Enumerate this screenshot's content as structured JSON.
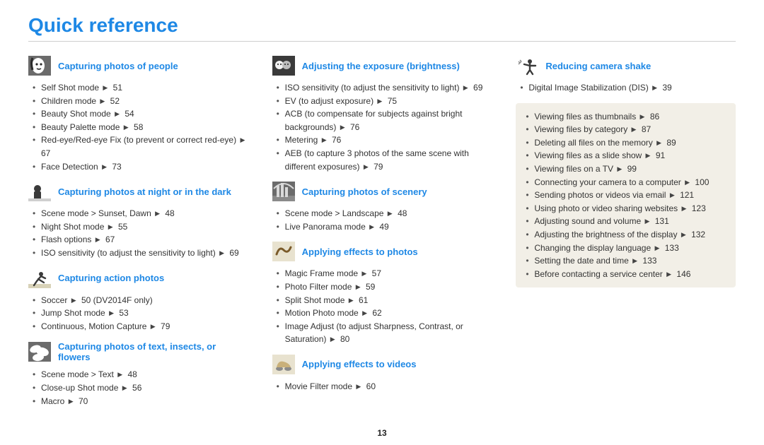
{
  "page": {
    "title": "Quick reference",
    "number": "13"
  },
  "colors": {
    "accent": "#1e88e5",
    "text": "#222222",
    "box_bg": "#f2efe7",
    "rule": "#cfcfcf"
  },
  "typography": {
    "title_pt": 28,
    "title_weight": 700,
    "section_pt": 13,
    "section_weight": 600,
    "body_pt": 12
  },
  "columns": [
    {
      "sections": [
        {
          "icon": "face",
          "title": "Capturing photos of people",
          "items": [
            {
              "label": "Self Shot mode",
              "page": "51"
            },
            {
              "label": "Children mode",
              "page": "52"
            },
            {
              "label": "Beauty Shot mode",
              "page": "54"
            },
            {
              "label": "Beauty Palette mode",
              "page": "58"
            },
            {
              "label": "Red-eye/Red-eye Fix (to prevent or correct red-eye)",
              "page": "67"
            },
            {
              "label": "Face Detection",
              "page": "73"
            }
          ]
        },
        {
          "icon": "night",
          "title": "Capturing photos at night or in the dark",
          "items": [
            {
              "label": "Scene mode > Sunset, Dawn",
              "page": "48"
            },
            {
              "label": "Night Shot mode",
              "page": "55"
            },
            {
              "label": "Flash options",
              "page": "67"
            },
            {
              "label": "ISO sensitivity (to adjust the sensitivity to light)",
              "page": "69"
            }
          ]
        },
        {
          "icon": "action",
          "title": "Capturing action photos",
          "items": [
            {
              "label": "Soccer",
              "page": "50 (DV2014F only)"
            },
            {
              "label": "Jump Shot mode",
              "page": "53"
            },
            {
              "label": "Continuous, Motion Capture",
              "page": "79"
            }
          ]
        },
        {
          "icon": "flower",
          "title": "Capturing photos of text, insects, or flowers",
          "items": [
            {
              "label": "Scene mode > Text",
              "page": "48"
            },
            {
              "label": "Close-up Shot mode",
              "page": "56"
            },
            {
              "label": "Macro",
              "page": "70"
            }
          ]
        }
      ]
    },
    {
      "sections": [
        {
          "icon": "exposure",
          "title": "Adjusting the exposure (brightness)",
          "items": [
            {
              "label": "ISO sensitivity (to adjust the sensitivity to light)",
              "page": "69"
            },
            {
              "label": "EV (to adjust exposure)",
              "page": "75"
            },
            {
              "label": "ACB (to compensate for subjects against bright backgrounds)",
              "page": "76"
            },
            {
              "label": "Metering",
              "page": "76"
            },
            {
              "label": "AEB (to capture 3 photos of the same scene with different exposures)",
              "page": "79"
            }
          ]
        },
        {
          "icon": "scenery",
          "title": "Capturing photos of scenery",
          "items": [
            {
              "label": "Scene mode > Landscape",
              "page": "48"
            },
            {
              "label": "Live Panorama mode",
              "page": "49"
            }
          ]
        },
        {
          "icon": "fx-photo",
          "title": "Applying effects to photos",
          "items": [
            {
              "label": "Magic Frame mode",
              "page": "57"
            },
            {
              "label": "Photo Filter mode",
              "page": "59"
            },
            {
              "label": "Split Shot mode",
              "page": "61"
            },
            {
              "label": "Motion Photo mode",
              "page": "62"
            },
            {
              "label": "Image Adjust (to adjust Sharpness, Contrast, or Saturation)",
              "page": "80"
            }
          ]
        },
        {
          "icon": "fx-video",
          "title": "Applying effects to videos",
          "items": [
            {
              "label": "Movie Filter mode",
              "page": "60"
            }
          ]
        }
      ]
    },
    {
      "sections": [
        {
          "icon": "shake",
          "title": "Reducing camera shake",
          "items": [
            {
              "label": "Digital Image Stabilization (DIS)",
              "page": "39"
            }
          ]
        }
      ],
      "boxed": [
        {
          "label": "Viewing files as thumbnails",
          "page": "86"
        },
        {
          "label": "Viewing files by category",
          "page": "87"
        },
        {
          "label": "Deleting all files on the memory",
          "page": "89"
        },
        {
          "label": "Viewing files as a slide show",
          "page": "91"
        },
        {
          "label": "Viewing files on a TV",
          "page": "99"
        },
        {
          "label": "Connecting your camera to a computer",
          "page": "100"
        },
        {
          "label": "Sending photos or videos via email",
          "page": "121"
        },
        {
          "label": "Using photo or video sharing websites",
          "page": "123"
        },
        {
          "label": "Adjusting sound and volume",
          "page": "131"
        },
        {
          "label": "Adjusting the brightness of the display",
          "page": "132"
        },
        {
          "label": "Changing the display language",
          "page": "133"
        },
        {
          "label": "Setting the date and time",
          "page": "133"
        },
        {
          "label": "Before contacting a service center",
          "page": "146"
        }
      ]
    }
  ]
}
